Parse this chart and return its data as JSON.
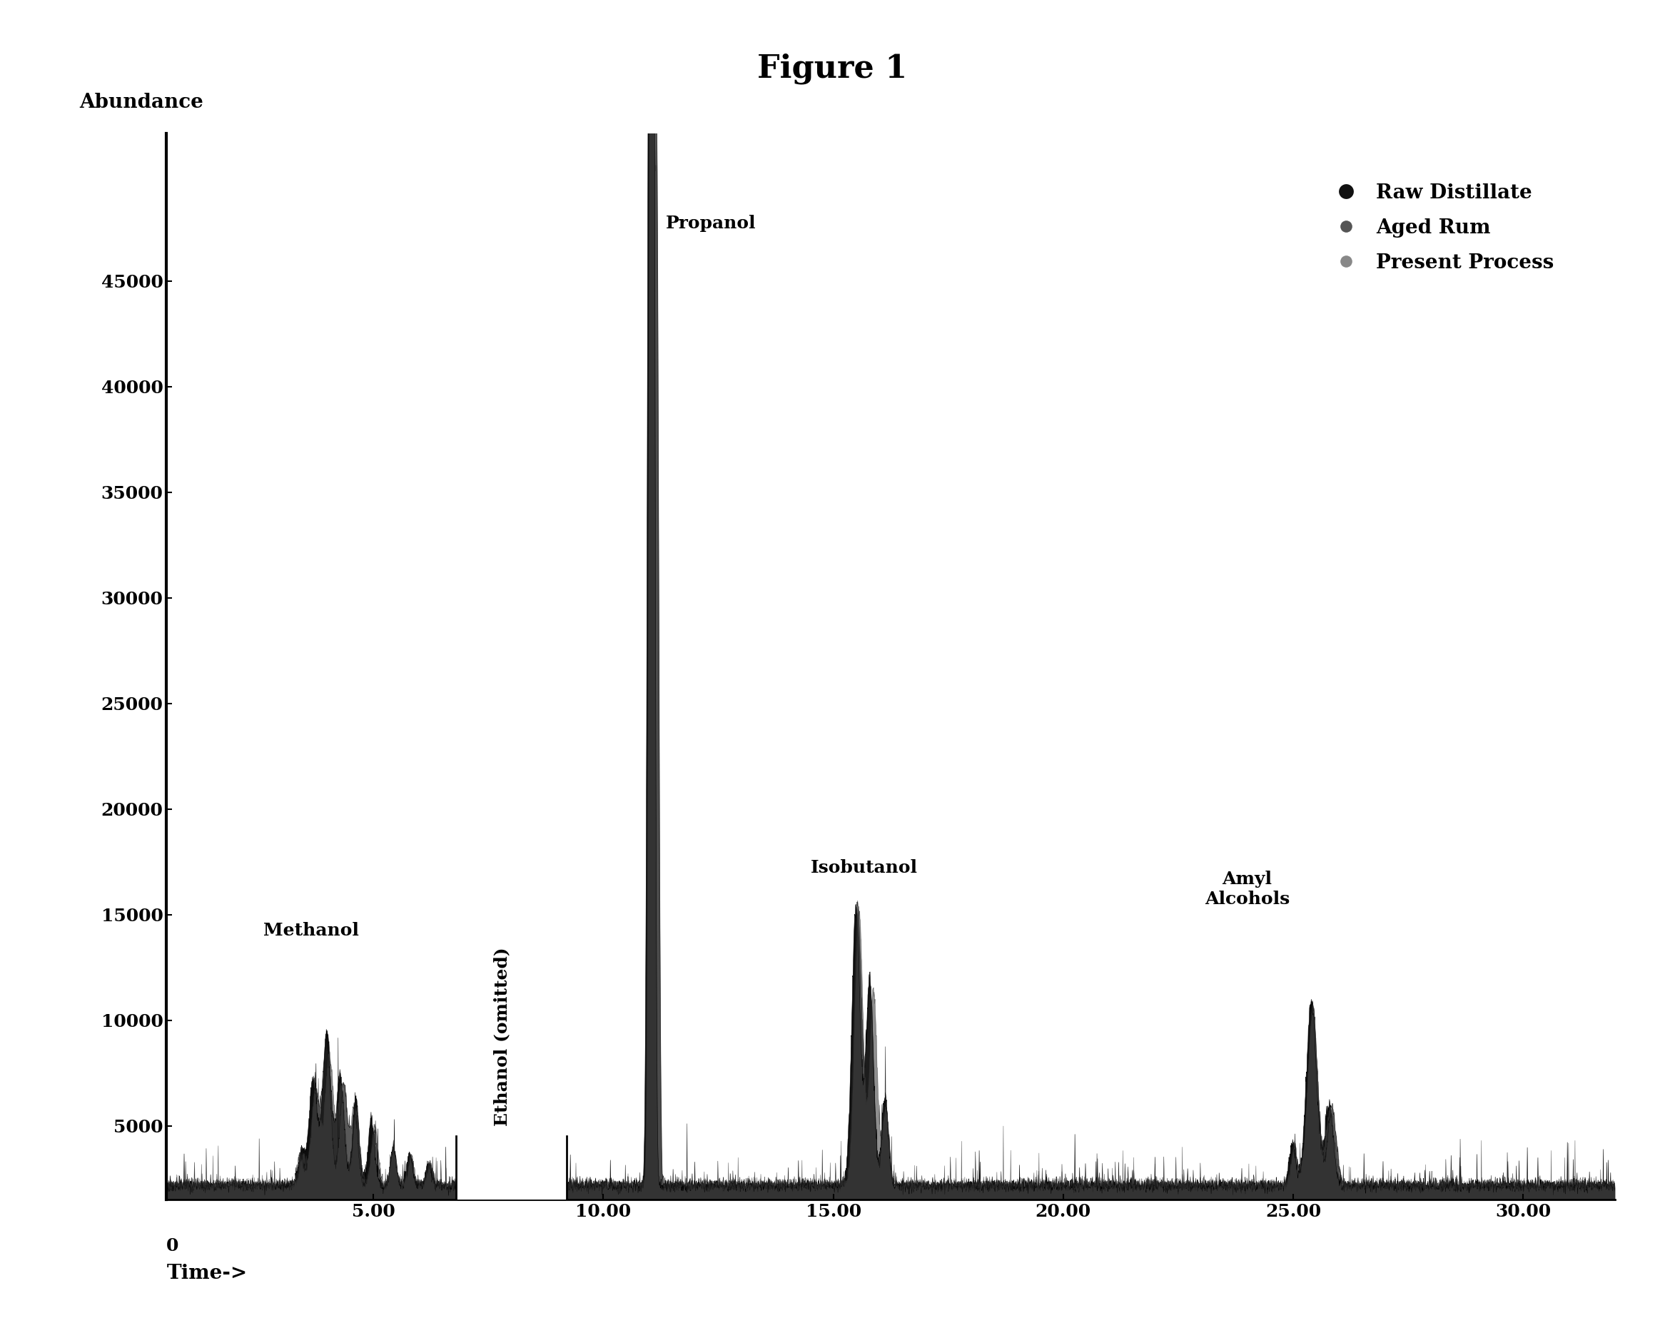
{
  "title": "Figure 1",
  "ylabel": "Abundance",
  "xlabel": "Time->",
  "xlim": [
    0.5,
    32
  ],
  "ylim": [
    1500,
    52000
  ],
  "yticks": [
    0,
    5000,
    10000,
    15000,
    20000,
    25000,
    30000,
    35000,
    40000,
    45000
  ],
  "xticks": [
    5.0,
    10.0,
    15.0,
    20.0,
    25.0,
    30.0
  ],
  "background_color": "#ffffff",
  "ethanol_gap_start": 6.8,
  "ethanol_gap_end": 9.2,
  "legend_entries": [
    "Raw Distillate",
    "Aged Rum",
    "Present Process"
  ],
  "title_fontsize": 32,
  "axis_label_fontsize": 20,
  "tick_fontsize": 18,
  "annotation_fontsize": 18,
  "legend_fontsize": 20
}
